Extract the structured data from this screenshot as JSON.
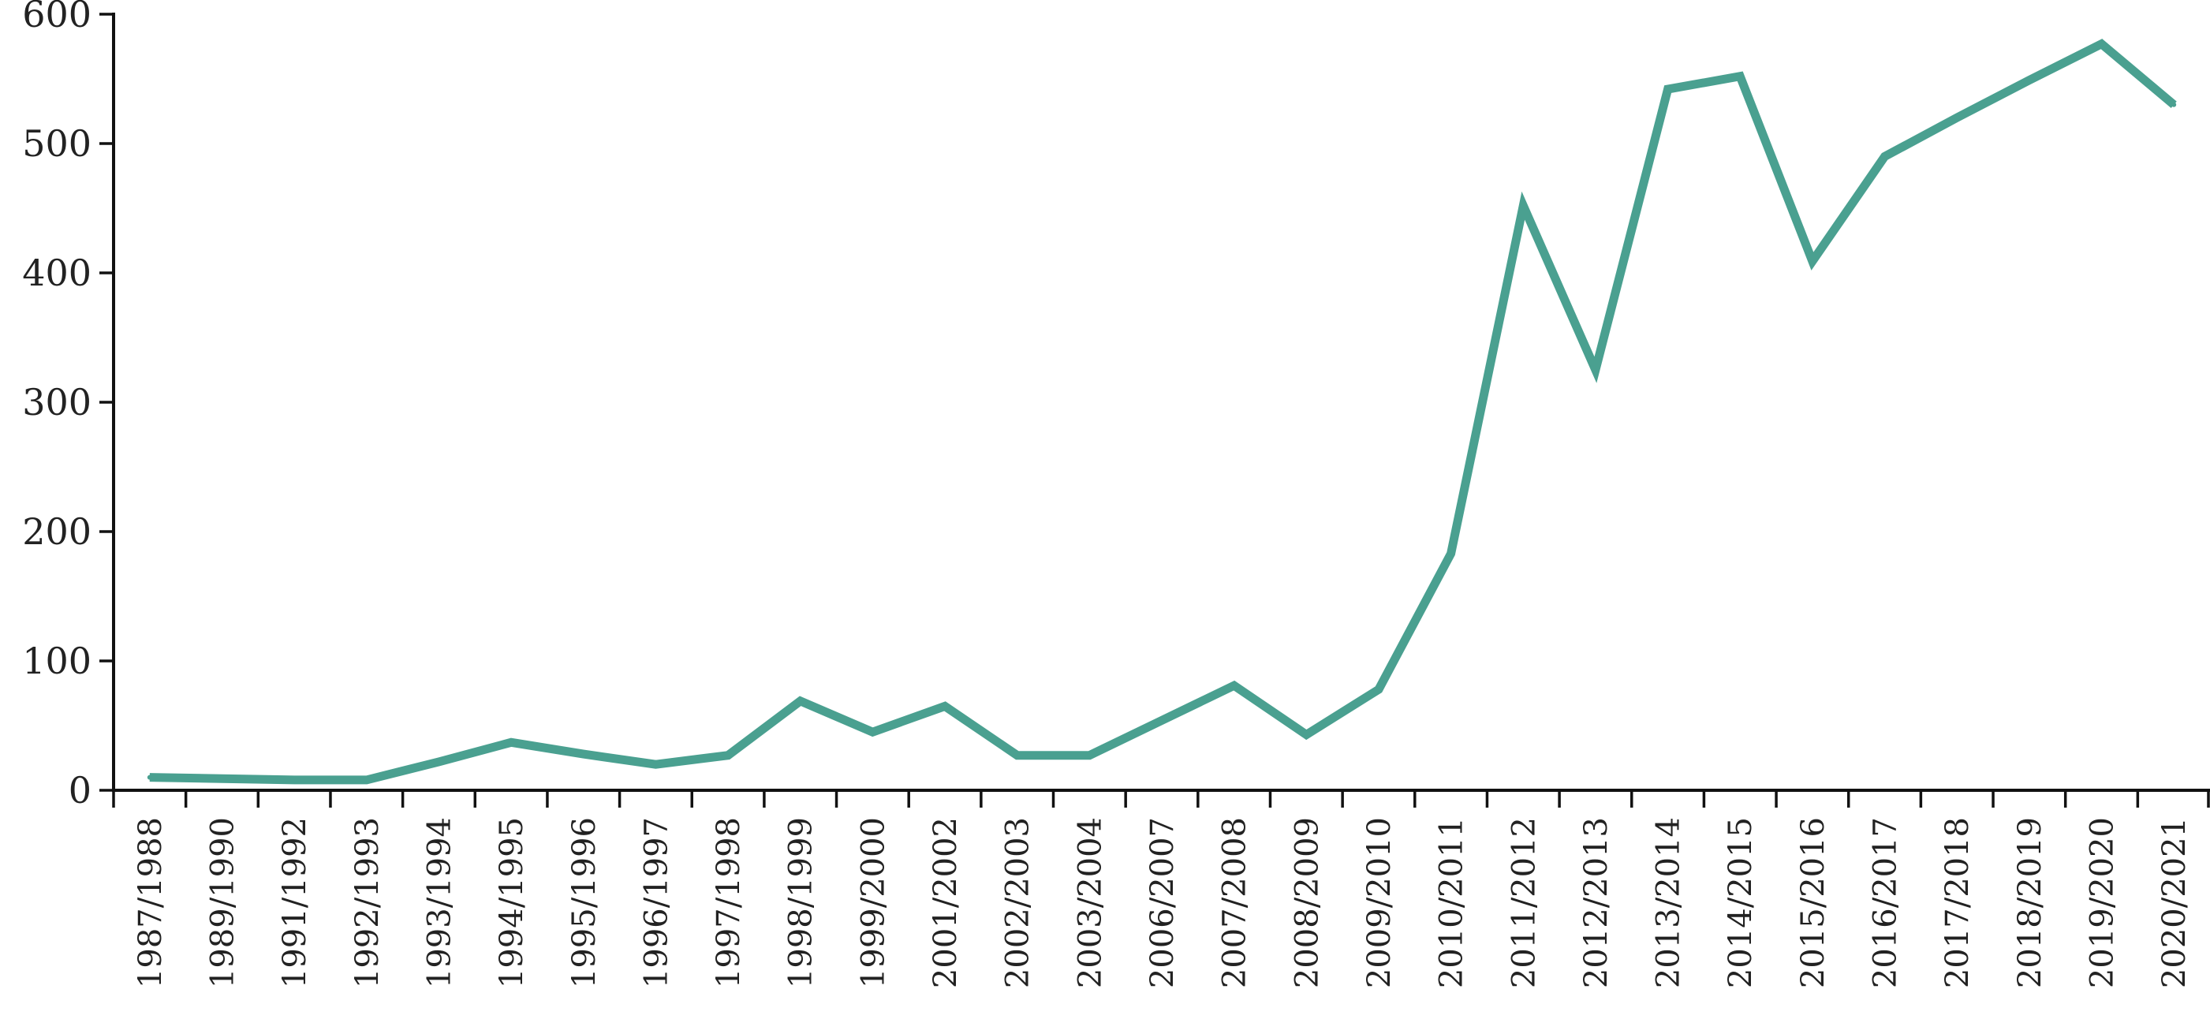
{
  "chart_data": {
    "type": "line",
    "title": "",
    "xlabel": "",
    "ylabel": "",
    "ylim": [
      0,
      600
    ],
    "yticks": [
      0,
      100,
      200,
      300,
      400,
      500,
      600
    ],
    "grid": false,
    "legend": "none",
    "line_color": "#4aa090",
    "categories": [
      "1987/1988",
      "1989/1990",
      "1991/1992",
      "1992/1993",
      "1993/1994",
      "1994/1995",
      "1995/1996",
      "1996/1997",
      "1997/1998",
      "1998/1999",
      "1999/2000",
      "2001/2002",
      "2002/2003",
      "2003/2004",
      "2006/2007",
      "2007/2008",
      "2008/2009",
      "2009/2010",
      "2010/2011",
      "2011/2012",
      "2012/2013",
      "2013/2014",
      "2014/2015",
      "2015/2016",
      "2016/2017",
      "2017/2018",
      "2018/2019",
      "2019/2020",
      "2020/2021"
    ],
    "series": [
      {
        "values": [
          10,
          9,
          8,
          8,
          22,
          37,
          28,
          20,
          27,
          69,
          45,
          65,
          27,
          27,
          54,
          81,
          43,
          78,
          183,
          452,
          325,
          542,
          552,
          409,
          490,
          520,
          549,
          577,
          530
        ]
      }
    ]
  }
}
